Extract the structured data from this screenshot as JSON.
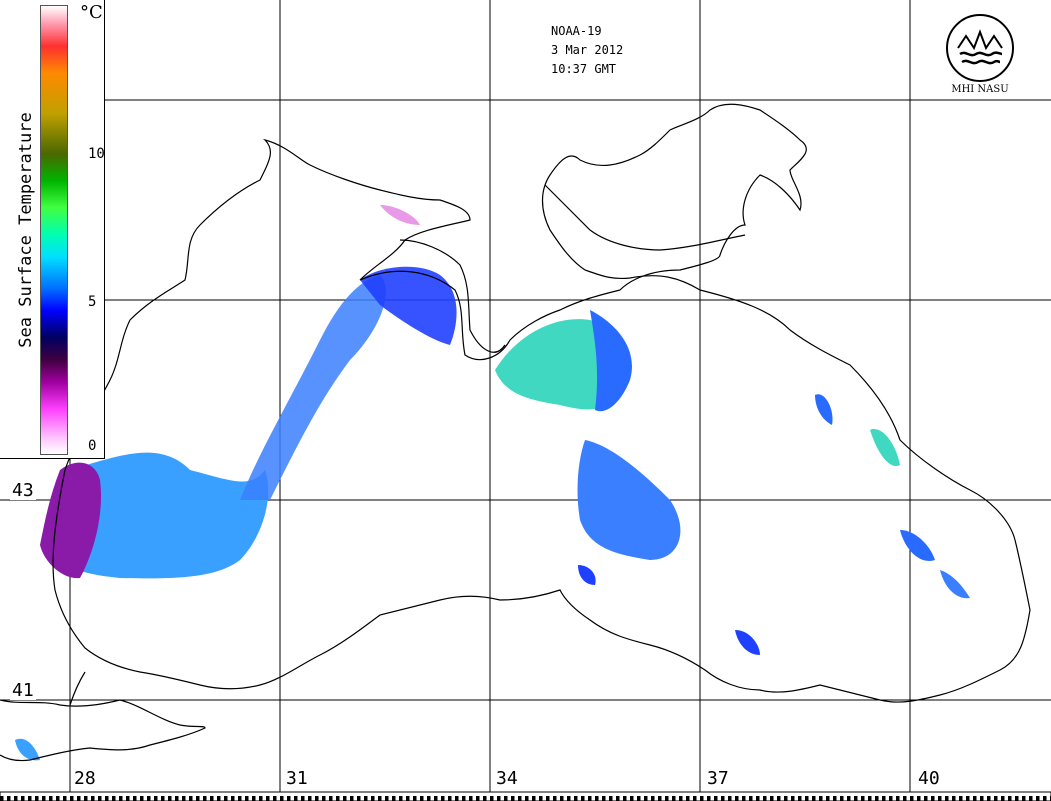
{
  "header": {
    "satellite": "NOAA-19",
    "date": "3 Mar 2012",
    "time": "10:37 GMT"
  },
  "logo": {
    "text": "MHI NASU",
    "icon": "mhi-wave-emblem"
  },
  "legend": {
    "title": "Sea Surface Temperature",
    "unit": "°C",
    "ticks": [
      "10",
      "5",
      "0"
    ]
  },
  "grid": {
    "longitude_labels": [
      "28",
      "31",
      "34",
      "37",
      "40"
    ],
    "latitude_labels": [
      "43",
      "41"
    ]
  },
  "colors": {
    "coast": "#000000",
    "water_cold": "#3aa0ff",
    "water_mid": "#40d8c0",
    "water_blue": "#2040ff",
    "water_purple": "#8a1aa8",
    "water_pink": "#e89ae8"
  }
}
